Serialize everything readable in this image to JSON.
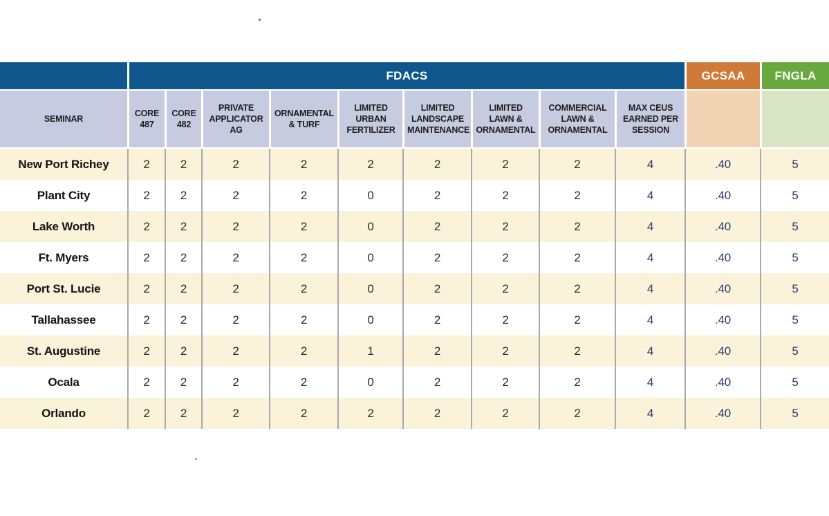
{
  "colors": {
    "fdacs_blue": "#0e568c",
    "gcsaa_orange": "#cf7a38",
    "fngla_green": "#67a93c",
    "header_lavender": "#c6cbdf",
    "gcsaa_light_orange": "#f2d3b4",
    "fngla_light_green": "#d8e4c4",
    "row_cream": "#fbf2da",
    "row_white": "#ffffff",
    "navy_text": "#2c3a6e",
    "black_text": "#1d1d20",
    "separator_gray": "#a9a9a9"
  },
  "table": {
    "title_row": {
      "fdacs_label": "FDACS",
      "gcsaa_label": "GCSAA",
      "fngla_label": "FNGLA"
    },
    "seminar_header_label": "SEMINAR",
    "fdacs_columns": [
      "CORE 487",
      "CORE 482",
      "PRIVATE APPLICATOR AG",
      "ORNAMENTAL & TURF",
      "LIMITED URBAN FERTILIZER",
      "LIMITED LANDSCAPE MAINTENANCE",
      "LIMITED LAWN & ORNAMENTAL",
      "COMMERCIAL LAWN & ORNAMENTAL",
      "MAX CEUS EARNED PER SESSION"
    ],
    "value_columns_order": [
      "CORE 487",
      "CORE 482",
      "PRIVATE APPLICATOR AG",
      "ORNAMENTAL & TURF",
      "LIMITED URBAN FERTILIZER",
      "LIMITED LANDSCAPE MAINTENANCE",
      "LIMITED LAWN & ORNAMENTAL",
      "COMMERCIAL LAWN & ORNAMENTAL",
      "MAX CEUS EARNED PER SESSION",
      "GCSAA",
      "FNGLA"
    ],
    "rows": [
      {
        "seminar": "New Port Richey",
        "values": [
          "2",
          "2",
          "2",
          "2",
          "2",
          "2",
          "2",
          "2",
          "4",
          ".40",
          "5"
        ]
      },
      {
        "seminar": "Plant City",
        "values": [
          "2",
          "2",
          "2",
          "2",
          "0",
          "2",
          "2",
          "2",
          "4",
          ".40",
          "5"
        ]
      },
      {
        "seminar": "Lake Worth",
        "values": [
          "2",
          "2",
          "2",
          "2",
          "0",
          "2",
          "2",
          "2",
          "4",
          ".40",
          "5"
        ]
      },
      {
        "seminar": "Ft. Myers",
        "values": [
          "2",
          "2",
          "2",
          "2",
          "0",
          "2",
          "2",
          "2",
          "4",
          ".40",
          "5"
        ]
      },
      {
        "seminar": "Port St. Lucie",
        "values": [
          "2",
          "2",
          "2",
          "2",
          "0",
          "2",
          "2",
          "2",
          "4",
          ".40",
          "5"
        ]
      },
      {
        "seminar": "Tallahassee",
        "values": [
          "2",
          "2",
          "2",
          "2",
          "0",
          "2",
          "2",
          "2",
          "4",
          ".40",
          "5"
        ]
      },
      {
        "seminar": "St. Augustine",
        "values": [
          "2",
          "2",
          "2",
          "2",
          "1",
          "2",
          "2",
          "2",
          "4",
          ".40",
          "5"
        ]
      },
      {
        "seminar": "Ocala",
        "values": [
          "2",
          "2",
          "2",
          "2",
          "0",
          "2",
          "2",
          "2",
          "4",
          ".40",
          "5"
        ]
      },
      {
        "seminar": "Orlando",
        "values": [
          "2",
          "2",
          "2",
          "2",
          "2",
          "2",
          "2",
          "2",
          "4",
          ".40",
          "5"
        ]
      }
    ]
  }
}
